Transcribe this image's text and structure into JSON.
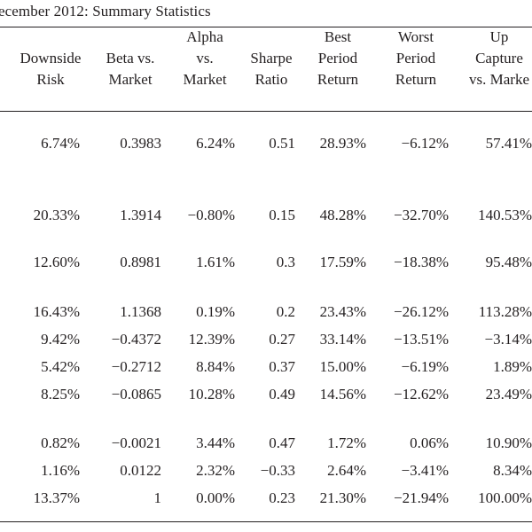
{
  "title": "ecember 2012: Summary Statistics",
  "columns": [
    {
      "lines": [
        "",
        "Downside",
        "Risk"
      ]
    },
    {
      "lines": [
        "",
        "Beta vs.",
        "Market"
      ]
    },
    {
      "lines": [
        "Alpha",
        "vs.",
        "Market"
      ]
    },
    {
      "lines": [
        "",
        "Sharpe",
        "Ratio"
      ]
    },
    {
      "lines": [
        "Best",
        "Period",
        "Return"
      ]
    },
    {
      "lines": [
        "Worst",
        "Period",
        "Return"
      ]
    },
    {
      "lines": [
        "Up",
        "Capture",
        "vs. Marke"
      ]
    }
  ],
  "rows": [
    [
      "6.74%",
      "0.3983",
      "6.24%",
      "0.51",
      "28.93%",
      "−6.12%",
      "57.41%"
    ],
    [
      "20.33%",
      "1.3914",
      "−0.80%",
      "0.15",
      "48.28%",
      "−32.70%",
      "140.53%"
    ],
    [
      "12.60%",
      "0.8981",
      "1.61%",
      "0.3",
      "17.59%",
      "−18.38%",
      "95.48%"
    ],
    [
      "16.43%",
      "1.1368",
      "0.19%",
      "0.2",
      "23.43%",
      "−26.12%",
      "113.28%"
    ],
    [
      "9.42%",
      "−0.4372",
      "12.39%",
      "0.27",
      "33.14%",
      "−13.51%",
      "−3.14%"
    ],
    [
      "5.42%",
      "−0.2712",
      "8.84%",
      "0.37",
      "15.00%",
      "−6.19%",
      "1.89%"
    ],
    [
      "8.25%",
      "−0.0865",
      "10.28%",
      "0.49",
      "14.56%",
      "−12.62%",
      "23.49%"
    ],
    [
      "0.82%",
      "−0.0021",
      "3.44%",
      "0.47",
      "1.72%",
      "0.06%",
      "10.90%"
    ],
    [
      "1.16%",
      "0.0122",
      "2.32%",
      "−0.33",
      "2.64%",
      "−3.41%",
      "8.34%"
    ],
    [
      "13.37%",
      "1",
      "0.00%",
      "0.23",
      "21.30%",
      "−21.94%",
      "100.00%"
    ]
  ]
}
